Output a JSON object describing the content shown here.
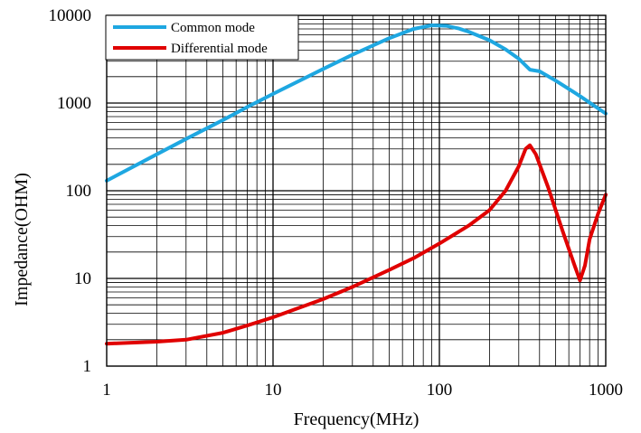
{
  "chart_data": {
    "type": "line",
    "title": "",
    "xlabel": "Frequency(MHz)",
    "ylabel": "Impedance(OHM)",
    "xscale": "log",
    "yscale": "log",
    "xlim": [
      1,
      1000
    ],
    "ylim": [
      1,
      10000
    ],
    "grid": true,
    "legend_position": "top-left",
    "x_ticks": [
      1,
      10,
      100,
      1000
    ],
    "x_tick_labels": [
      "1",
      "10",
      "100",
      "1000"
    ],
    "y_ticks": [
      1,
      10,
      100,
      1000,
      10000
    ],
    "y_tick_labels": [
      "1",
      "10",
      "100",
      "1000",
      "10000"
    ],
    "series": [
      {
        "name": "Common mode",
        "color": "#1ea7e1",
        "x": [
          1,
          2,
          3,
          5,
          7,
          10,
          20,
          30,
          50,
          70,
          90,
          110,
          130,
          150,
          200,
          250,
          300,
          350,
          400,
          500,
          700,
          1000
        ],
        "y": [
          130,
          260,
          390,
          640,
          900,
          1270,
          2450,
          3550,
          5500,
          7000,
          7700,
          7600,
          7100,
          6500,
          5200,
          4100,
          3200,
          2400,
          2300,
          1800,
          1200,
          760
        ]
      },
      {
        "name": "Differential mode",
        "color": "#e00000",
        "x": [
          1,
          2,
          3,
          5,
          7,
          10,
          20,
          30,
          50,
          70,
          100,
          150,
          200,
          250,
          300,
          330,
          350,
          380,
          450,
          550,
          650,
          700,
          750,
          800,
          900,
          1000
        ],
        "y": [
          1.8,
          1.9,
          2.0,
          2.4,
          2.9,
          3.6,
          5.8,
          8.0,
          12.5,
          17,
          25,
          40,
          60,
          100,
          190,
          300,
          330,
          260,
          110,
          35,
          14,
          9.5,
          14,
          28,
          55,
          90
        ]
      }
    ]
  }
}
